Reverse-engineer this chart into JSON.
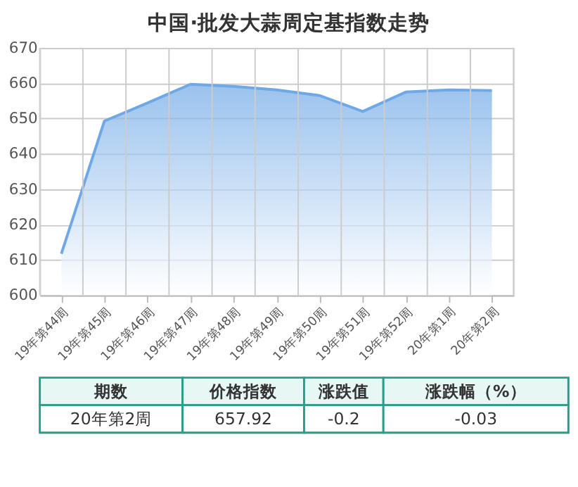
{
  "chart_data": {
    "type": "area",
    "title": "中国·批发大蒜周定基指数走势",
    "categories": [
      "19年第44周",
      "19年第45周",
      "19年第46周",
      "19年第47周",
      "19年第48周",
      "19年第49周",
      "19年第50周",
      "19年第51周",
      "19年第52周",
      "20年第1周",
      "20年第2周"
    ],
    "series": [
      {
        "color": "#6fa8e6",
        "values": [
          611.7,
          649.3,
          654.4,
          659.7,
          659.1,
          658.1,
          656.5,
          652.0,
          657.5,
          658.1,
          657.92
        ]
      }
    ],
    "ylim": [
      600,
      670
    ],
    "yticks": [
      600,
      610,
      620,
      630,
      640,
      650,
      660,
      670
    ],
    "grid": true,
    "annotations": [
      "期数",
      "价格指数",
      "涨跌值",
      "涨跌幅（%）",
      "20年第2周",
      "657.92",
      "-0.2",
      "-0.03"
    ]
  }
}
